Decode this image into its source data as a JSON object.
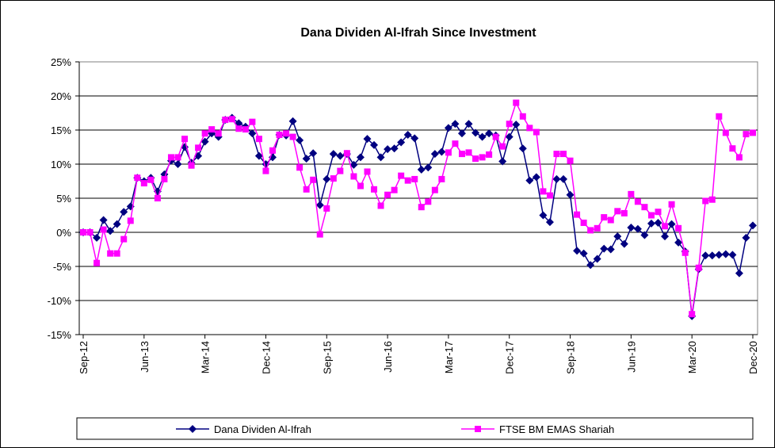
{
  "chart_data": {
    "type": "line",
    "title": "Dana Dividen Al-Ifrah  Since Investment",
    "categories": [
      "Sep-12",
      null,
      null,
      null,
      null,
      null,
      null,
      null,
      null,
      "Jun-13",
      null,
      null,
      null,
      null,
      null,
      null,
      null,
      null,
      "Mar-14",
      null,
      null,
      null,
      null,
      null,
      null,
      null,
      null,
      "Dec-14",
      null,
      null,
      null,
      null,
      null,
      null,
      null,
      null,
      "Sep-15",
      null,
      null,
      null,
      null,
      null,
      null,
      null,
      null,
      "Jun-16",
      null,
      null,
      null,
      null,
      null,
      null,
      null,
      null,
      "Mar-17",
      null,
      null,
      null,
      null,
      null,
      null,
      null,
      null,
      "Dec-17",
      null,
      null,
      null,
      null,
      null,
      null,
      null,
      null,
      "Sep-18",
      null,
      null,
      null,
      null,
      null,
      null,
      null,
      null,
      "Jun-19",
      null,
      null,
      null,
      null,
      null,
      null,
      null,
      null,
      "Mar-20",
      null,
      null,
      null,
      null,
      null,
      null,
      null,
      null,
      "Dec-20"
    ],
    "series": [
      {
        "name": "Dana Dividen Al-Ifrah",
        "color": "#000080",
        "marker": "diamond",
        "values": [
          0,
          0,
          -0.8,
          1.8,
          0.2,
          1.2,
          3,
          3.8,
          8,
          7.5,
          8,
          6,
          8.5,
          10.5,
          10,
          12.5,
          10.2,
          11.2,
          13.3,
          14.5,
          14,
          16.5,
          16.8,
          16,
          15.5,
          14.5,
          11.2,
          10,
          11,
          14.3,
          14.2,
          16.3,
          13.5,
          10.8,
          11.6,
          4,
          7.8,
          11.5,
          11.2,
          11.5,
          9.9,
          11,
          13.7,
          12.8,
          11,
          12.2,
          12.3,
          13.2,
          14.3,
          13.8,
          9.2,
          9.5,
          11.5,
          11.8,
          15.3,
          15.9,
          14.5,
          15.9,
          14.6,
          14,
          14.5,
          14.2,
          10.4,
          14,
          15.8,
          12.3,
          7.6,
          8.1,
          2.5,
          1.5,
          7.8,
          7.8,
          5.5,
          -2.7,
          -3.1,
          -4.8,
          -3.9,
          -2.4,
          -2.5,
          -0.6,
          -1.7,
          0.7,
          0.5,
          -0.4,
          1.3,
          1.4,
          -0.6,
          1.2,
          -1.5,
          -2.8,
          -12.3,
          -5.4,
          -3.4,
          -3.4,
          -3.3,
          -3.2,
          -3.3,
          -6,
          -0.8,
          1
        ]
      },
      {
        "name": "FTSE BM EMAS Shariah",
        "color": "#ff00ff",
        "marker": "square",
        "values": [
          0,
          0,
          -4.5,
          0.4,
          -3.1,
          -3.1,
          -1,
          1.7,
          8,
          7.2,
          7.7,
          5,
          7.8,
          11,
          11,
          13.7,
          9.8,
          12.4,
          14.5,
          15.1,
          14.5,
          16.5,
          16.6,
          15.2,
          15.1,
          16.2,
          13.7,
          9,
          12,
          14.3,
          14.5,
          14,
          9.5,
          6.3,
          7.7,
          -0.3,
          3.5,
          7.9,
          9,
          11.6,
          8.2,
          6.8,
          8.9,
          6.3,
          3.9,
          5.5,
          6.2,
          8.3,
          7.6,
          7.8,
          3.7,
          4.5,
          6.2,
          7.8,
          11.7,
          13,
          11.5,
          11.7,
          10.8,
          11,
          11.4,
          14,
          12.6,
          15.9,
          19,
          17,
          15.3,
          14.7,
          6,
          5.4,
          11.5,
          11.5,
          10.5,
          2.6,
          1.4,
          0.3,
          0.6,
          2.2,
          1.8,
          3.1,
          2.8,
          5.6,
          4.5,
          3.7,
          2.5,
          3,
          0.9,
          4.1,
          0.6,
          -3,
          -12,
          -5.2,
          4.6,
          4.8,
          17,
          14.6,
          12.3,
          11,
          14.4,
          14.6
        ]
      }
    ],
    "ylim": [
      -15,
      25
    ],
    "yticks": [
      {
        "value": -15,
        "label": "-15%"
      },
      {
        "value": -10,
        "label": "-10%"
      },
      {
        "value": -5,
        "label": "-5%"
      },
      {
        "value": 0,
        "label": "0%"
      },
      {
        "value": 5,
        "label": "5%"
      },
      {
        "value": 10,
        "label": "10%"
      },
      {
        "value": 15,
        "label": "15%"
      },
      {
        "value": 20,
        "label": "20%"
      },
      {
        "value": 25,
        "label": "25%"
      }
    ],
    "grid": true,
    "legend": "bottom"
  }
}
